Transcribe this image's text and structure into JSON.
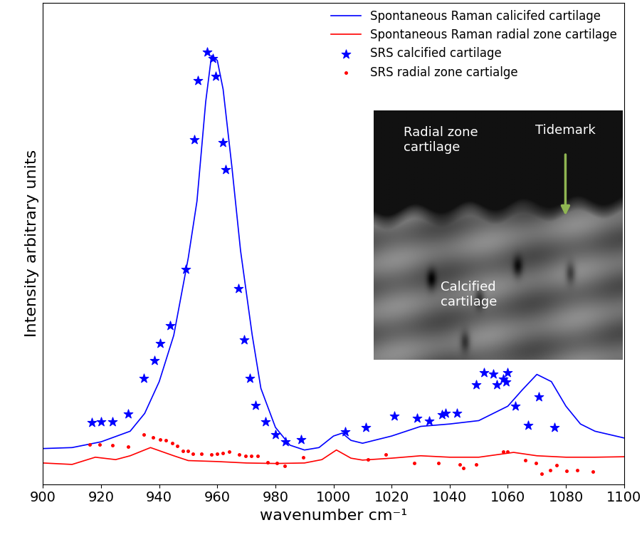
{
  "chart_data": {
    "type": "line",
    "x_label": "wavenumber cm⁻¹",
    "y_label": "Intensity arbitrary units",
    "xlim": [
      900,
      1100
    ],
    "xticks": [
      900,
      920,
      940,
      960,
      980,
      1000,
      1020,
      1040,
      1060,
      1080,
      1100
    ],
    "ylim": [
      0,
      100
    ],
    "tick_labels": "x",
    "grid": false,
    "legend": "upper right",
    "series": [
      {
        "name": "Spontaneous Raman calicifed cartilage",
        "type": "line",
        "color": "#0000ff",
        "line_style": "solid",
        "x": [
          900,
          910,
          920,
          930,
          935,
          940,
          945,
          950,
          953,
          956,
          958,
          960,
          962,
          965,
          968,
          972,
          975,
          980,
          985,
          990,
          995,
          1000,
          1003,
          1006,
          1010,
          1020,
          1030,
          1040,
          1050,
          1060,
          1065,
          1070,
          1075,
          1080,
          1085,
          1090,
          1100
        ],
        "values": [
          7.4,
          7.6,
          8.8,
          11.0,
          14.7,
          21.3,
          30.9,
          47.0,
          58.8,
          79.4,
          89.0,
          88.0,
          82.0,
          66.0,
          48.5,
          31.0,
          19.9,
          11.8,
          8.1,
          7.1,
          7.6,
          10.0,
          10.6,
          9.1,
          8.5,
          10.0,
          12.0,
          12.5,
          13.2,
          16.2,
          19.6,
          22.8,
          21.3,
          16.2,
          12.5,
          11.0,
          9.6
        ]
      },
      {
        "name": "Spontaneous Raman radial zone cartilage",
        "type": "line",
        "color": "#ff0000",
        "line_style": "solid",
        "x": [
          900,
          910,
          918,
          925,
          930,
          937,
          945,
          950,
          960,
          970,
          980,
          990,
          996,
          1001,
          1006,
          1010,
          1020,
          1030,
          1040,
          1050,
          1062,
          1070,
          1080,
          1090,
          1100
        ],
        "values": [
          4.4,
          4.1,
          5.6,
          5.1,
          5.9,
          7.6,
          5.9,
          4.9,
          4.7,
          4.4,
          4.3,
          4.4,
          5.1,
          7.1,
          5.4,
          5.0,
          5.4,
          5.9,
          5.6,
          5.6,
          6.6,
          5.9,
          5.6,
          5.6,
          5.7
        ]
      },
      {
        "name": "SRS calcified cartilage",
        "type": "scatter",
        "color": "#0000ff",
        "marker": "asterisk",
        "x": [
          916.7,
          920.1,
          924.0,
          929.4,
          934.8,
          938.3,
          940.2,
          943.7,
          949.1,
          952.0,
          953.3,
          956.4,
          958.4,
          959.4,
          961.8,
          962.8,
          967.2,
          969.2,
          971.2,
          973.1,
          976.6,
          980.0,
          983.4,
          988.8,
          1004.0,
          1011.2,
          1021.0,
          1028.8,
          1033.0,
          1037.4,
          1038.6,
          1042.6,
          1049.2,
          1051.9,
          1055.1,
          1056.3,
          1058.3,
          1059.5,
          1060.0,
          1062.5,
          1066.9,
          1070.6,
          1076.0
        ],
        "values": [
          12.8,
          12.9,
          12.9,
          14.6,
          22.0,
          25.7,
          29.3,
          32.9,
          44.6,
          71.6,
          83.8,
          89.7,
          88.4,
          84.7,
          70.9,
          65.3,
          40.6,
          30.0,
          22.0,
          16.3,
          12.9,
          10.3,
          8.8,
          9.3,
          10.9,
          11.8,
          14.1,
          13.7,
          13.1,
          14.4,
          14.7,
          14.7,
          20.6,
          23.2,
          22.9,
          20.6,
          21.8,
          21.2,
          23.2,
          16.2,
          12.2,
          18.2,
          11.8
        ]
      },
      {
        "name": "SRS radial zone cartialge",
        "type": "scatter",
        "color": "#ff0000",
        "marker": "point",
        "x": [
          916.0,
          919.6,
          924.0,
          929.4,
          934.8,
          937.8,
          940.2,
          942.2,
          944.4,
          946.1,
          948.1,
          949.8,
          951.5,
          954.5,
          957.9,
          959.8,
          961.8,
          964.2,
          967.6,
          969.6,
          971.8,
          974.0,
          977.2,
          980.4,
          983.3,
          989.5,
          1011.8,
          1018.1,
          1027.9,
          1036.0,
          1043.4,
          1044.6,
          1049.0,
          1058.3,
          1059.8,
          1066.0,
          1069.6,
          1071.6,
          1074.5,
          1076.9,
          1080.1,
          1084.0,
          1089.2
        ],
        "values": [
          8.2,
          8.2,
          8.1,
          7.8,
          10.3,
          9.7,
          9.3,
          9.1,
          8.5,
          7.9,
          6.9,
          6.9,
          6.3,
          6.3,
          6.2,
          6.3,
          6.5,
          6.8,
          6.2,
          5.9,
          5.9,
          5.9,
          4.6,
          4.4,
          3.8,
          5.6,
          5.1,
          6.2,
          4.4,
          4.4,
          4.1,
          3.4,
          4.1,
          6.8,
          6.8,
          5.0,
          4.4,
          2.2,
          2.9,
          4.0,
          2.8,
          2.9,
          2.6
        ]
      }
    ],
    "annotations": [
      {
        "text": "Radial zone\ncartilage"
      },
      {
        "text": "Tidemark"
      },
      {
        "text": "Calcified\ncartilage"
      }
    ]
  }
}
